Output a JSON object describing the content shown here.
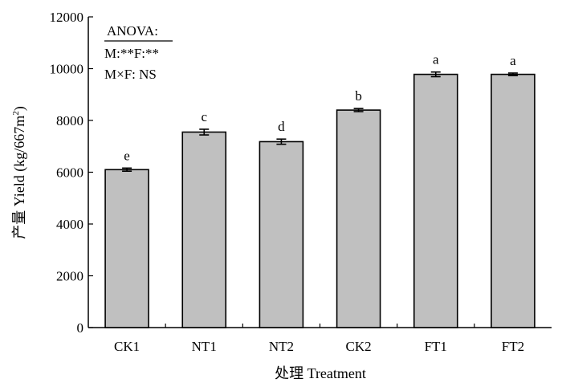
{
  "chart_data": {
    "type": "bar",
    "xlabel": "处理 Treatment",
    "ylabel": "产量 Yield (kg/667m",
    "ylabel_sup": "2",
    "ylabel_close": ")",
    "ylim": [
      0,
      12000
    ],
    "yticks": [
      0,
      2000,
      4000,
      6000,
      8000,
      10000,
      12000
    ],
    "ytick_labels": [
      "0",
      "2000",
      "4000",
      "6000",
      "8000",
      "10000",
      "12000"
    ],
    "categories": [
      "CK1",
      "NT1",
      "NT2",
      "CK2",
      "FT1",
      "FT2"
    ],
    "values": [
      6100,
      7550,
      7180,
      8400,
      9780,
      9780
    ],
    "errors": [
      60,
      110,
      100,
      60,
      90,
      50
    ],
    "sig_letters": [
      "e",
      "c",
      "d",
      "b",
      "a",
      "a"
    ],
    "bar_color": "#c0c0c0",
    "grid": false,
    "annotation": {
      "line1": "ANOVA:",
      "line2": "M:**F:**",
      "line3": "M×F: NS"
    }
  }
}
